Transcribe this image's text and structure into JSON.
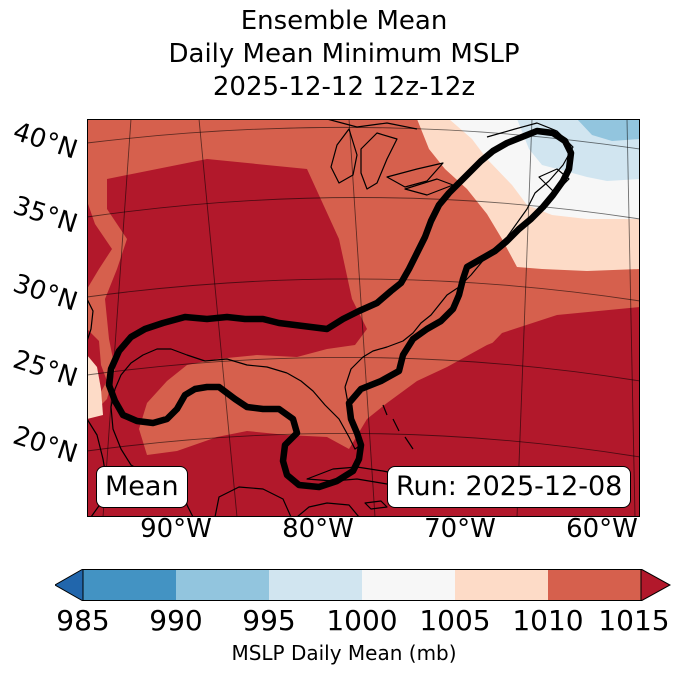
{
  "title": {
    "line1": "Ensemble Mean",
    "line2": "Daily Mean Minimum MSLP",
    "line3": "2025-12-12 12z-12z"
  },
  "map": {
    "lat_labels": [
      "40°N",
      "35°N",
      "30°N",
      "25°N",
      "20°N"
    ],
    "lon_labels": [
      "90°W",
      "80°W",
      "70°W",
      "60°W"
    ],
    "inset_left": "Mean",
    "inset_right": "Run: 2025-12-08",
    "contour_color": "#000000",
    "coastline_color": "#000000"
  },
  "colorbar": {
    "label": "MSLP Daily Mean (mb)",
    "ticks": [
      "985",
      "990",
      "995",
      "1000",
      "1005",
      "1010",
      "1015"
    ],
    "extend": "both",
    "colors": {
      "under": "#2166ac",
      "985-990": "#4393c3",
      "990-995": "#92c5de",
      "995-1000": "#d1e5f0",
      "1000-1005": "#f7f7f7",
      "1005-1010": "#fddbc7",
      "1010-1015": "#d6604d",
      "over": "#b2182b"
    }
  }
}
